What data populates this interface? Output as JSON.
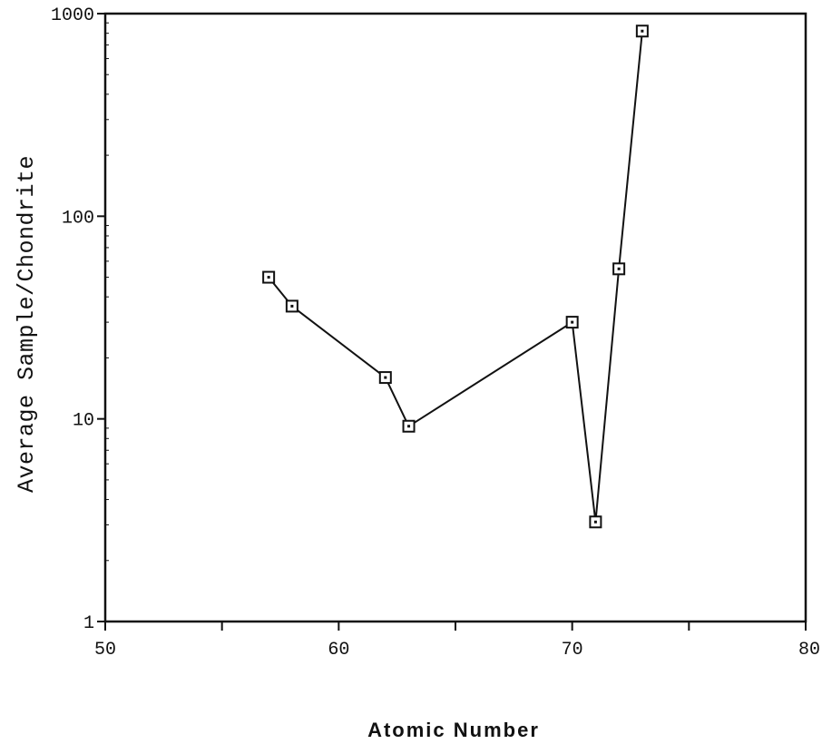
{
  "chart_data": {
    "type": "line",
    "title": "",
    "xlabel": "Atomic Number",
    "ylabel": "Average Sample/Chondrite",
    "xlim": [
      50,
      80
    ],
    "ylim": [
      1,
      1000
    ],
    "yscale": "log",
    "grid": false,
    "x_ticks": [
      50,
      55,
      60,
      65,
      70,
      75,
      80
    ],
    "x_tick_labels": [
      "50",
      "",
      "60",
      "",
      "70",
      "",
      "80"
    ],
    "y_ticks": [
      1,
      10,
      100,
      1000
    ],
    "y_tick_labels": [
      "1",
      "10",
      "100",
      "1000"
    ],
    "series": [
      {
        "marker": "square-dot",
        "color": "#111111",
        "x": [
          57,
          58,
          62,
          63,
          70,
          71,
          72,
          73
        ],
        "y": [
          50,
          36,
          16,
          9.2,
          30,
          3.1,
          55,
          820
        ]
      }
    ]
  }
}
